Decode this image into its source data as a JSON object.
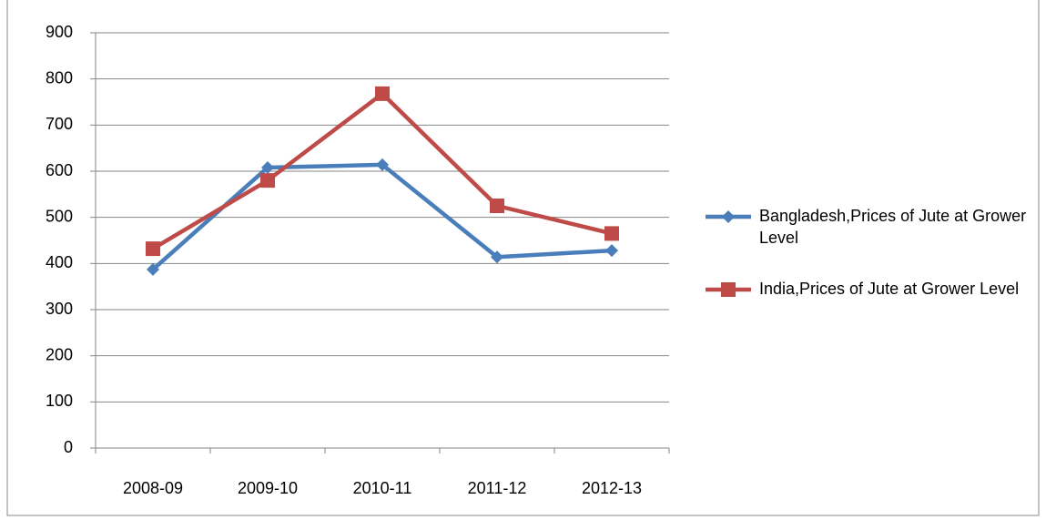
{
  "chart_data": {
    "type": "line",
    "categories": [
      "2008-09",
      "2009-10",
      "2010-11",
      "2011-12",
      "2012-13"
    ],
    "series": [
      {
        "name": "Bangladesh,Prices of Jute at Grower Level",
        "color": "#4a7ebb",
        "marker": "diamond",
        "values": [
          387,
          608,
          614,
          414,
          428
        ]
      },
      {
        "name": "India,Prices of Jute at Grower Level",
        "color": "#be4b48",
        "marker": "square",
        "values": [
          432,
          580,
          768,
          525,
          465
        ]
      }
    ],
    "ylim": [
      0,
      900
    ],
    "yticks": [
      0,
      100,
      200,
      300,
      400,
      500,
      600,
      700,
      800,
      900
    ],
    "grid": true,
    "legend": "right"
  }
}
